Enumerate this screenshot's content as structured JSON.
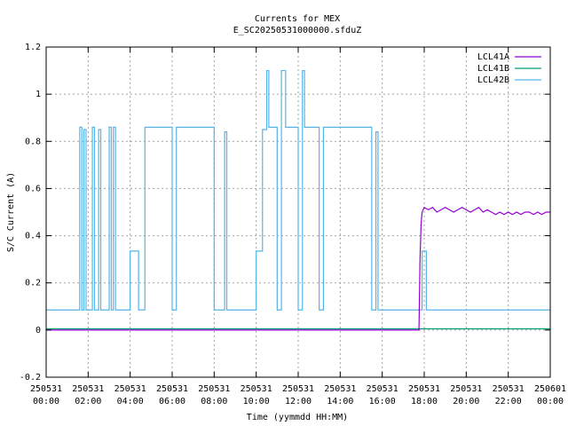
{
  "chart_data": {
    "type": "line",
    "title": "Currents for MEX",
    "subtitle": "E_SC20250531000000.sfduZ",
    "xlabel": "Time (yymmdd HH:MM)",
    "ylabel": "S/C Current (A)",
    "xlim": [
      0,
      24
    ],
    "ylim": [
      -0.2,
      1.2
    ],
    "grid": true,
    "legend_position": "top-right",
    "x_ticks": [
      {
        "value": 0,
        "date": "250531",
        "time": "00:00"
      },
      {
        "value": 2,
        "date": "250531",
        "time": "02:00"
      },
      {
        "value": 4,
        "date": "250531",
        "time": "04:00"
      },
      {
        "value": 6,
        "date": "250531",
        "time": "06:00"
      },
      {
        "value": 8,
        "date": "250531",
        "time": "08:00"
      },
      {
        "value": 10,
        "date": "250531",
        "time": "10:00"
      },
      {
        "value": 12,
        "date": "250531",
        "time": "12:00"
      },
      {
        "value": 14,
        "date": "250531",
        "time": "14:00"
      },
      {
        "value": 16,
        "date": "250531",
        "time": "16:00"
      },
      {
        "value": 18,
        "date": "250531",
        "time": "18:00"
      },
      {
        "value": 20,
        "date": "250531",
        "time": "20:00"
      },
      {
        "value": 22,
        "date": "250531",
        "time": "22:00"
      },
      {
        "value": 24,
        "date": "250601",
        "time": "00:00"
      }
    ],
    "y_ticks": [
      {
        "value": -0.2,
        "label": "-0.2"
      },
      {
        "value": 0,
        "label": "0"
      },
      {
        "value": 0.2,
        "label": "0.2"
      },
      {
        "value": 0.4,
        "label": "0.4"
      },
      {
        "value": 0.6,
        "label": "0.6"
      },
      {
        "value": 0.8,
        "label": "0.8"
      },
      {
        "value": 1,
        "label": "1"
      },
      {
        "value": 1.2,
        "label": "1.2"
      }
    ],
    "series": [
      {
        "name": "LCL41A",
        "color": "#9400d3",
        "points": [
          [
            0,
            0
          ],
          [
            17.75,
            0
          ],
          [
            17.8,
            0.3
          ],
          [
            17.85,
            0.45
          ],
          [
            17.9,
            0.5
          ],
          [
            18,
            0.52
          ],
          [
            18.2,
            0.51
          ],
          [
            18.4,
            0.52
          ],
          [
            18.6,
            0.5
          ],
          [
            18.8,
            0.51
          ],
          [
            19,
            0.52
          ],
          [
            19.2,
            0.51
          ],
          [
            19.4,
            0.5
          ],
          [
            19.6,
            0.51
          ],
          [
            19.8,
            0.52
          ],
          [
            20,
            0.51
          ],
          [
            20.2,
            0.5
          ],
          [
            20.4,
            0.51
          ],
          [
            20.6,
            0.52
          ],
          [
            20.8,
            0.5
          ],
          [
            21,
            0.51
          ],
          [
            21.2,
            0.5
          ],
          [
            21.4,
            0.49
          ],
          [
            21.6,
            0.5
          ],
          [
            21.8,
            0.49
          ],
          [
            22,
            0.5
          ],
          [
            22.2,
            0.49
          ],
          [
            22.4,
            0.5
          ],
          [
            22.6,
            0.49
          ],
          [
            22.8,
            0.5
          ],
          [
            23,
            0.5
          ],
          [
            23.2,
            0.49
          ],
          [
            23.4,
            0.5
          ],
          [
            23.6,
            0.49
          ],
          [
            23.8,
            0.5
          ],
          [
            24,
            0.5
          ]
        ]
      },
      {
        "name": "LCL41B",
        "color": "#009e73",
        "points": [
          [
            0,
            0.005
          ],
          [
            24,
            0.005
          ]
        ]
      },
      {
        "name": "LCL42B",
        "color": "#56b4e9",
        "points": [
          [
            0,
            0.085
          ],
          [
            1.6,
            0.085
          ],
          [
            1.6,
            0.86
          ],
          [
            1.7,
            0.86
          ],
          [
            1.7,
            0.085
          ],
          [
            1.8,
            0.085
          ],
          [
            1.8,
            0.85
          ],
          [
            1.9,
            0.85
          ],
          [
            1.9,
            0.085
          ],
          [
            2.2,
            0.085
          ],
          [
            2.2,
            0.86
          ],
          [
            2.3,
            0.86
          ],
          [
            2.3,
            0.085
          ],
          [
            2.5,
            0.085
          ],
          [
            2.5,
            0.85
          ],
          [
            2.6,
            0.85
          ],
          [
            2.6,
            0.085
          ],
          [
            3.0,
            0.085
          ],
          [
            3.0,
            0.86
          ],
          [
            3.1,
            0.86
          ],
          [
            3.1,
            0.085
          ],
          [
            3.2,
            0.085
          ],
          [
            3.2,
            0.86
          ],
          [
            3.3,
            0.86
          ],
          [
            3.3,
            0.085
          ],
          [
            4.0,
            0.085
          ],
          [
            4.0,
            0.335
          ],
          [
            4.4,
            0.335
          ],
          [
            4.4,
            0.085
          ],
          [
            4.7,
            0.085
          ],
          [
            4.7,
            0.86
          ],
          [
            6.0,
            0.86
          ],
          [
            6.0,
            0.085
          ],
          [
            6.2,
            0.085
          ],
          [
            6.2,
            0.86
          ],
          [
            8.0,
            0.86
          ],
          [
            8.0,
            0.085
          ],
          [
            8.5,
            0.085
          ],
          [
            8.5,
            0.84
          ],
          [
            8.6,
            0.84
          ],
          [
            8.6,
            0.085
          ],
          [
            10.0,
            0.085
          ],
          [
            10.0,
            0.335
          ],
          [
            10.3,
            0.335
          ],
          [
            10.3,
            0.85
          ],
          [
            10.5,
            0.85
          ],
          [
            10.5,
            1.1
          ],
          [
            10.6,
            1.1
          ],
          [
            10.6,
            0.86
          ],
          [
            11.0,
            0.86
          ],
          [
            11.0,
            0.085
          ],
          [
            11.2,
            0.085
          ],
          [
            11.2,
            1.1
          ],
          [
            11.4,
            1.1
          ],
          [
            11.4,
            0.86
          ],
          [
            12.0,
            0.86
          ],
          [
            12.0,
            0.085
          ],
          [
            12.2,
            0.085
          ],
          [
            12.2,
            1.1
          ],
          [
            12.3,
            1.1
          ],
          [
            12.3,
            0.86
          ],
          [
            13.0,
            0.86
          ],
          [
            13.0,
            0.085
          ],
          [
            13.2,
            0.085
          ],
          [
            13.2,
            0.86
          ],
          [
            15.5,
            0.86
          ],
          [
            15.5,
            0.085
          ],
          [
            15.7,
            0.085
          ],
          [
            15.7,
            0.84
          ],
          [
            15.8,
            0.84
          ],
          [
            15.8,
            0.085
          ],
          [
            17.9,
            0.085
          ],
          [
            17.9,
            0.335
          ],
          [
            18.1,
            0.335
          ],
          [
            18.1,
            0.085
          ],
          [
            24,
            0.085
          ]
        ]
      }
    ]
  }
}
